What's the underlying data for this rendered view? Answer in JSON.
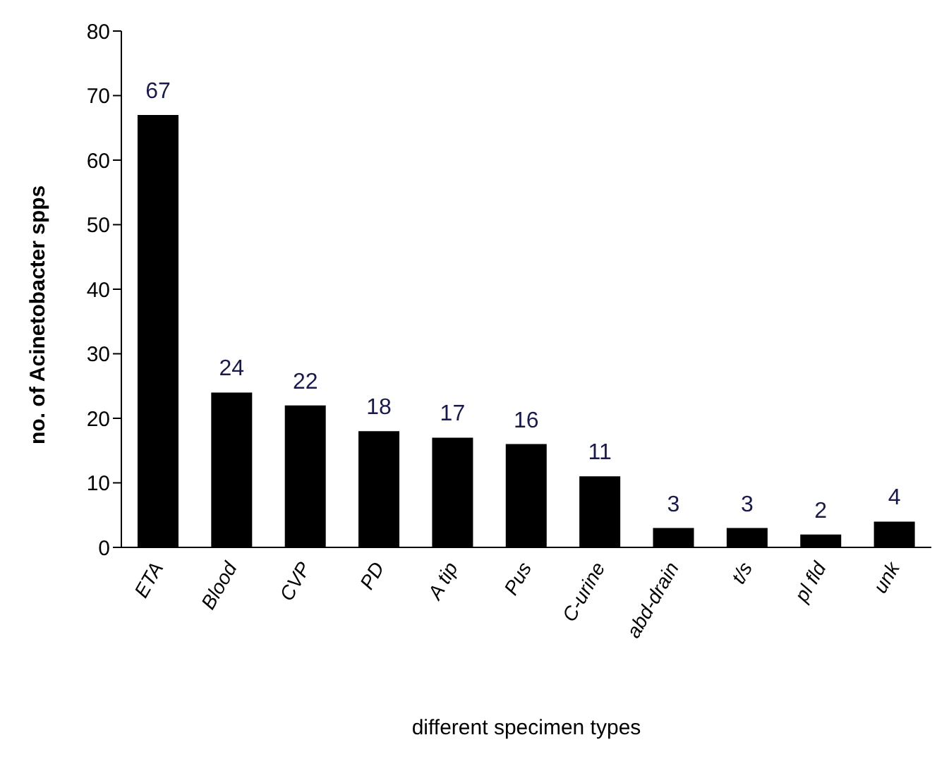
{
  "chart_data": {
    "type": "bar",
    "xlabel": "different specimen types",
    "ylabel": "no. of Acinetobacter spps",
    "categories": [
      "ETA",
      "Blood",
      "CVP",
      "PD",
      "A tip",
      "Pus",
      "C-urine",
      "abd-drain",
      "t/s",
      "pl fld",
      "unk"
    ],
    "values": [
      67,
      24,
      22,
      18,
      17,
      16,
      11,
      3,
      3,
      2,
      4
    ],
    "color": "#000000",
    "ylim": [
      0,
      80
    ],
    "yticks": [
      0,
      10,
      20,
      30,
      40,
      50,
      60,
      70,
      80
    ],
    "grid": false,
    "data_labels": true
  }
}
